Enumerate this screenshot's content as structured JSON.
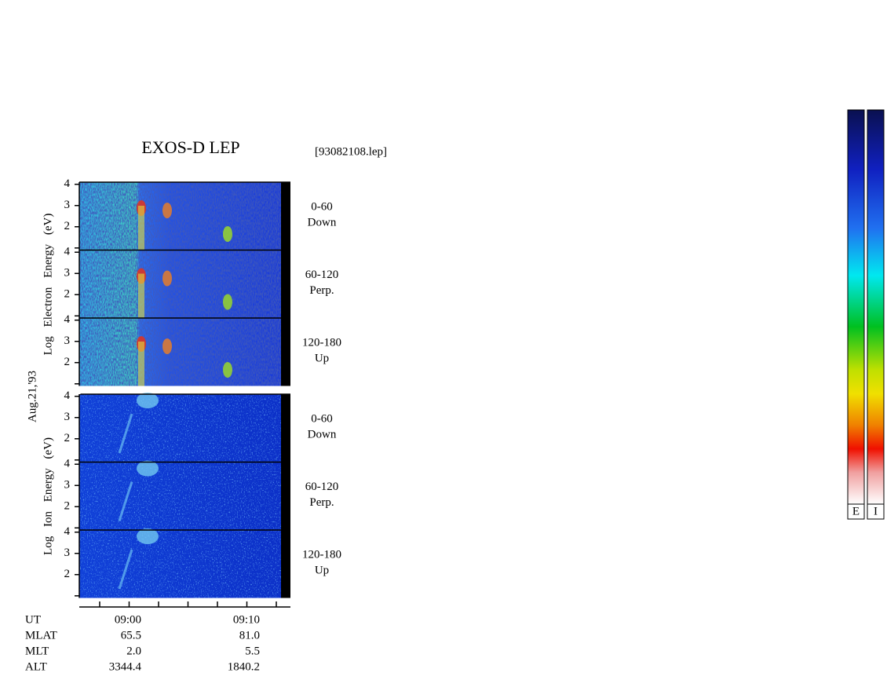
{
  "title": "EXOS-D LEP",
  "file": "[93082108.lep]",
  "date": "Aug.21,'93",
  "groups": [
    {
      "ylabel": "Log Electron Energy (eV)",
      "kind": "electron"
    },
    {
      "ylabel": "Log Ion Energy (eV)",
      "kind": "ion"
    }
  ],
  "chart_data": [
    {
      "type": "spectrogram",
      "group": 0,
      "ylim": [
        0.9,
        4.1
      ],
      "yticks": [
        2,
        3,
        4
      ],
      "minor_yticks": [
        1
      ],
      "annotation": [
        "0-60",
        "Down"
      ]
    },
    {
      "type": "spectrogram",
      "group": 0,
      "ylim": [
        0.9,
        4.1
      ],
      "yticks": [
        2,
        3,
        4
      ],
      "minor_yticks": [
        1
      ],
      "annotation": [
        "60-120",
        "Perp."
      ]
    },
    {
      "type": "spectrogram",
      "group": 0,
      "ylim": [
        0.9,
        4.1
      ],
      "yticks": [
        2,
        3,
        4
      ],
      "minor_yticks": [
        1
      ],
      "annotation": [
        "120-180",
        "Up"
      ]
    },
    {
      "type": "spectrogram",
      "group": 1,
      "ylim": [
        0.9,
        4.1
      ],
      "yticks": [
        2,
        3,
        4
      ],
      "minor_yticks": [
        1
      ],
      "annotation": [
        "0-60",
        "Down"
      ]
    },
    {
      "type": "spectrogram",
      "group": 1,
      "ylim": [
        0.9,
        4.1
      ],
      "yticks": [
        2,
        3,
        4
      ],
      "minor_yticks": [
        1
      ],
      "annotation": [
        "60-120",
        "Perp."
      ]
    },
    {
      "type": "spectrogram",
      "group": 1,
      "ylim": [
        0.9,
        4.1
      ],
      "yticks": [
        2,
        3,
        4
      ],
      "minor_yticks": [
        1
      ],
      "annotation": [
        "120-180",
        "Up"
      ]
    }
  ],
  "orbit": {
    "rows": [
      [
        "UT",
        "09:00",
        "09:10"
      ],
      [
        "MLAT",
        "65.5",
        "81.0"
      ],
      [
        "MLT",
        "2.0",
        "5.5"
      ],
      [
        "ALT",
        "3344.4",
        "1840.2"
      ]
    ]
  },
  "colorbars": [
    "E",
    "I"
  ]
}
